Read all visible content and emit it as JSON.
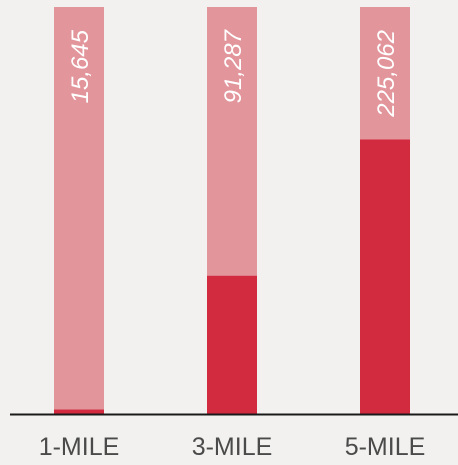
{
  "colors": {
    "background": "#f3f1ef",
    "bar_total": "#e2959b",
    "bar_highlight": "#d22b40",
    "baseline": "#1a1a1a",
    "value_label": "#ffffff",
    "category_label": "#4a4a4a"
  },
  "chart_data": {
    "type": "bar",
    "stacked": true,
    "categories": [
      "1-MILE",
      "3-MILE",
      "5-MILE"
    ],
    "value_labels": [
      "15,645",
      "91,287",
      "225,062"
    ],
    "series": [
      {
        "values": [
          4600,
          136000,
          270000
        ]
      },
      {
        "values": [
          395400,
          264000,
          130000
        ]
      }
    ],
    "totals": [
      400000,
      400000,
      400000
    ],
    "ylim": [
      0,
      400000
    ],
    "xlabel": "",
    "ylabel": "",
    "title": "",
    "legend": "none",
    "grid": false
  }
}
